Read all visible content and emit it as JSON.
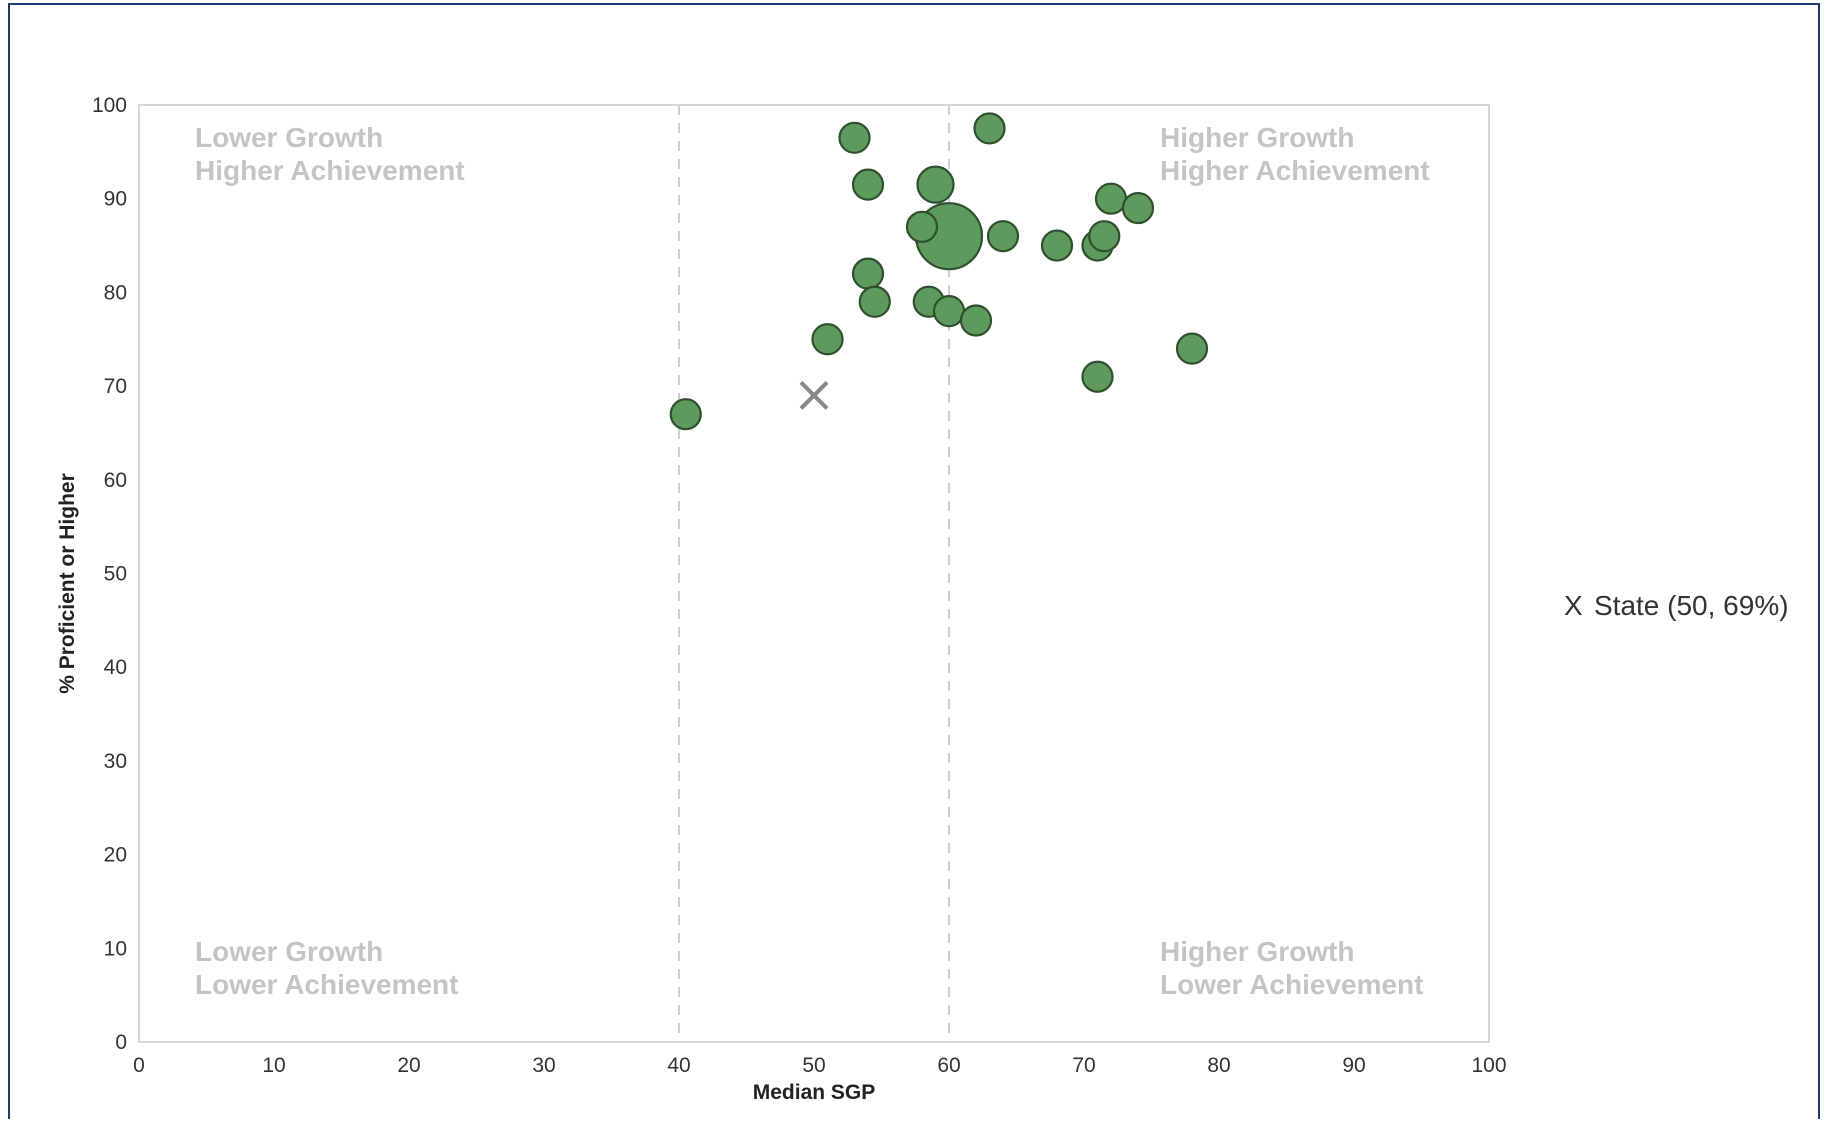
{
  "chart_data": {
    "type": "scatter",
    "xlabel": "Median SGP",
    "ylabel": "% Proficient or Higher",
    "xlim": [
      0,
      100
    ],
    "ylim": [
      0,
      100
    ],
    "x_ticks": [
      "0",
      "10",
      "20",
      "30",
      "40",
      "50",
      "60",
      "70",
      "80",
      "90",
      "100"
    ],
    "y_ticks": [
      "0",
      "10",
      "20",
      "30",
      "40",
      "50",
      "60",
      "70",
      "80",
      "90",
      "100"
    ],
    "grid": false,
    "reference_lines_x": [
      40,
      60
    ],
    "quadrant_labels": [
      {
        "lines": [
          "Lower Growth",
          "Higher Achievement"
        ],
        "position": "top-left"
      },
      {
        "lines": [
          "Higher Growth",
          "Higher Achievement"
        ],
        "position": "top-right"
      },
      {
        "lines": [
          "Lower Growth",
          "Lower Achievement"
        ],
        "position": "bottom-left"
      },
      {
        "lines": [
          "Higher Growth",
          "Lower Achievement"
        ],
        "position": "bottom-right"
      }
    ],
    "point_color": "#5e9a5e",
    "point_border": "#2f4f2f",
    "points": [
      {
        "x": 40.5,
        "y": 67,
        "size": 1
      },
      {
        "x": 51,
        "y": 75,
        "size": 1
      },
      {
        "x": 53,
        "y": 96.5,
        "size": 1
      },
      {
        "x": 54,
        "y": 91.5,
        "size": 1
      },
      {
        "x": 54,
        "y": 82,
        "size": 1
      },
      {
        "x": 54.5,
        "y": 79,
        "size": 1
      },
      {
        "x": 58,
        "y": 87,
        "size": 1
      },
      {
        "x": 58.5,
        "y": 79,
        "size": 1
      },
      {
        "x": 59,
        "y": 91.5,
        "size": 1.2
      },
      {
        "x": 60,
        "y": 78,
        "size": 1
      },
      {
        "x": 60,
        "y": 86,
        "size": 2.2
      },
      {
        "x": 62,
        "y": 77,
        "size": 1
      },
      {
        "x": 63,
        "y": 97.5,
        "size": 1
      },
      {
        "x": 64,
        "y": 86,
        "size": 1
      },
      {
        "x": 68,
        "y": 85,
        "size": 1
      },
      {
        "x": 71,
        "y": 85,
        "size": 1
      },
      {
        "x": 71.5,
        "y": 86,
        "size": 1
      },
      {
        "x": 72,
        "y": 90,
        "size": 1
      },
      {
        "x": 74,
        "y": 89,
        "size": 1
      },
      {
        "x": 71,
        "y": 71,
        "size": 1
      },
      {
        "x": 78,
        "y": 74,
        "size": 1
      }
    ],
    "state_marker": {
      "x": 50,
      "y": 69,
      "color": "#888888"
    },
    "legend": {
      "symbol": "X",
      "label": "State (50, 69%)",
      "placement": "right"
    }
  }
}
